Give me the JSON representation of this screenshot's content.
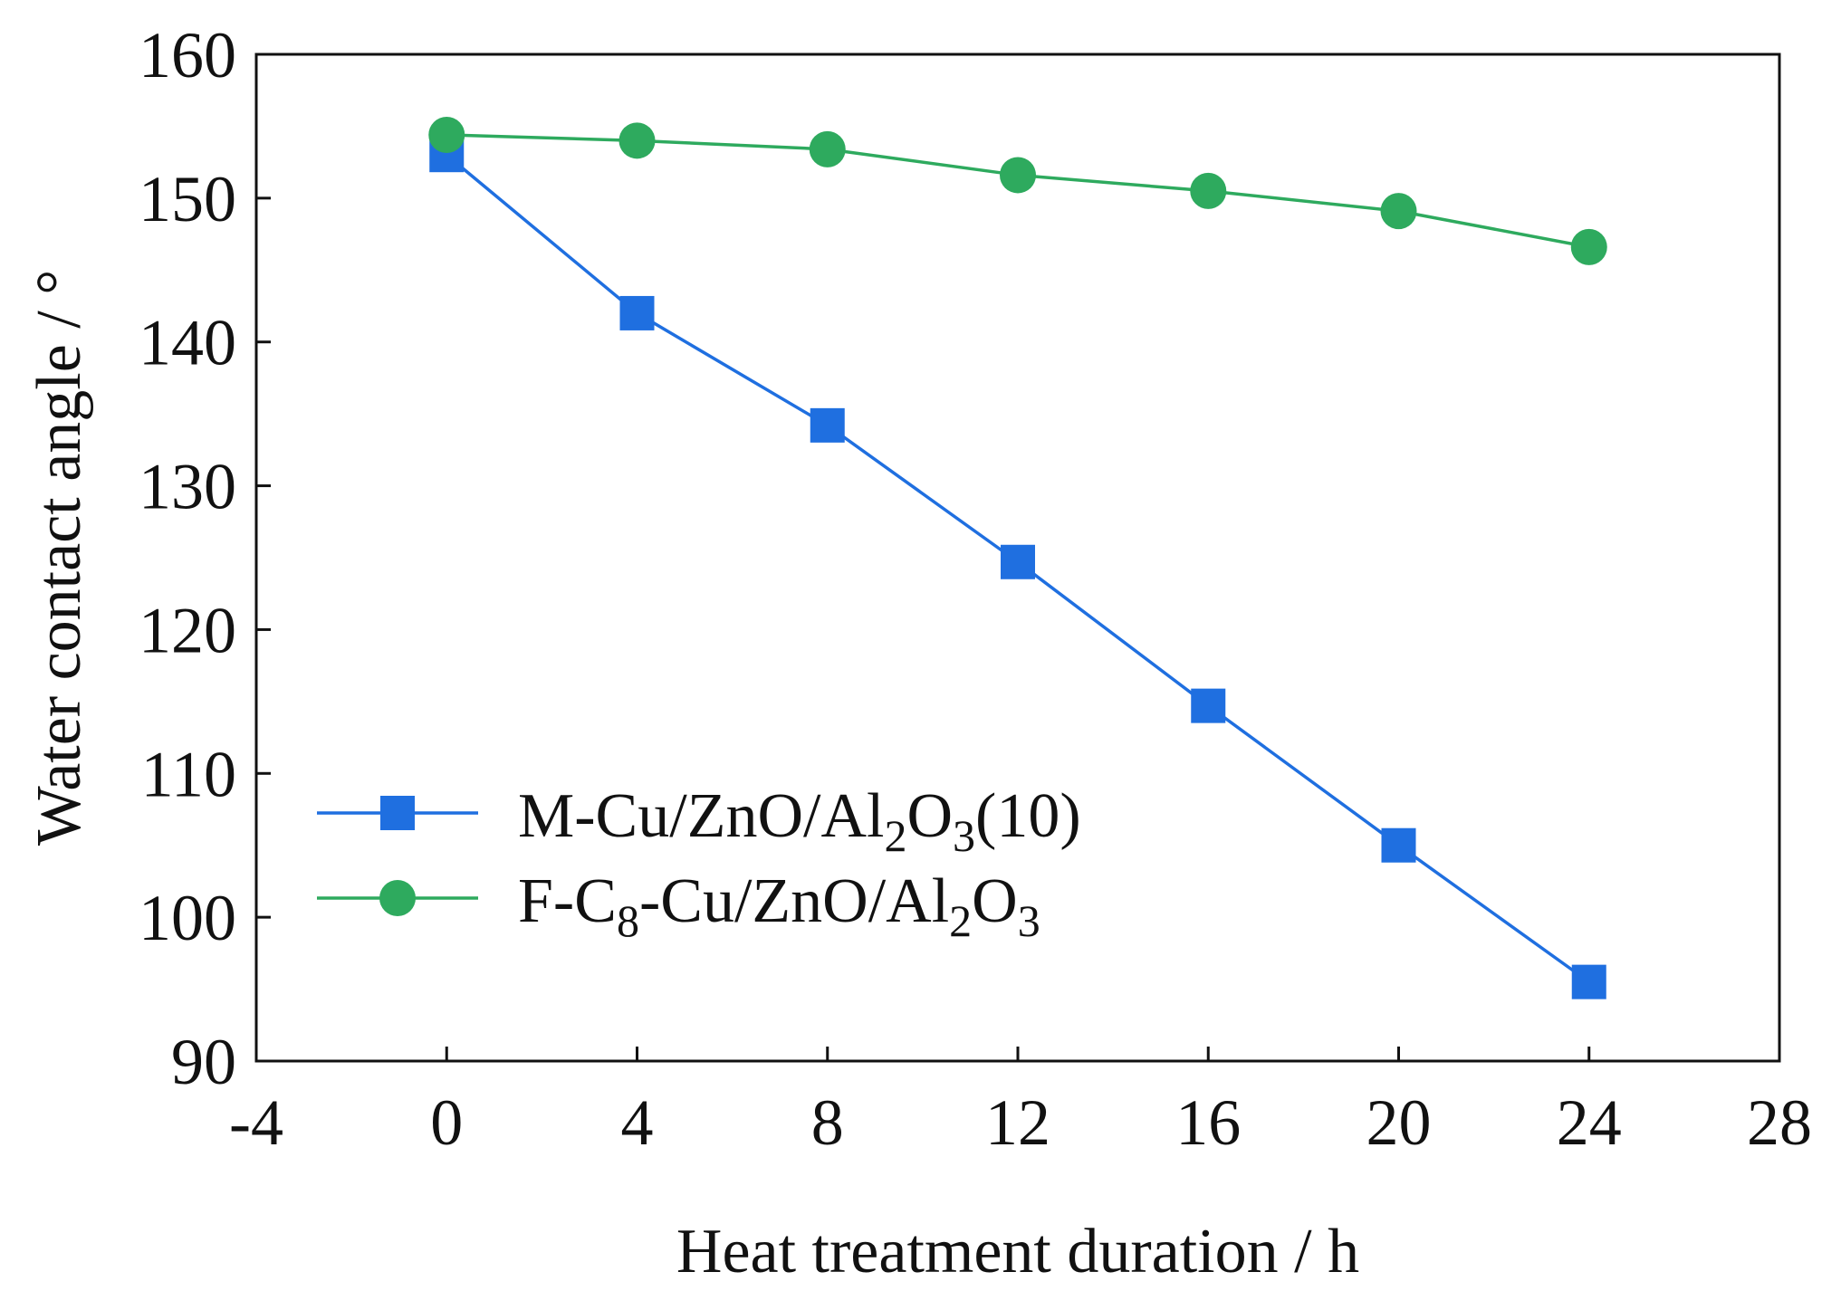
{
  "chart_data": {
    "type": "line",
    "title": "",
    "xlabel": "Heat treatment duration / h",
    "ylabel": "Water contact angle / °",
    "xlim": [
      -4,
      28
    ],
    "ylim": [
      90,
      160
    ],
    "xticks": [
      -4,
      0,
      4,
      8,
      12,
      16,
      20,
      24,
      28
    ],
    "yticks": [
      90,
      100,
      110,
      120,
      130,
      140,
      150,
      160
    ],
    "x": [
      0,
      4,
      8,
      12,
      16,
      20,
      24
    ],
    "grid": false,
    "legend_position": "bottom-left",
    "series": [
      {
        "name": "M-Cu/ZnO/Al2O3(10)",
        "legend_parts": [
          {
            "text": "M-Cu/ZnO/Al",
            "sub": false
          },
          {
            "text": "2",
            "sub": true
          },
          {
            "text": "O",
            "sub": false
          },
          {
            "text": "3",
            "sub": true
          },
          {
            "text": "(10)",
            "sub": false
          }
        ],
        "values": [
          153.0,
          142.0,
          134.2,
          124.7,
          114.7,
          105.0,
          95.5
        ],
        "marker": "square",
        "color": "#1f6fe0"
      },
      {
        "name": "F-C8-Cu/ZnO/Al2O3",
        "legend_parts": [
          {
            "text": "F-C",
            "sub": false
          },
          {
            "text": "8",
            "sub": true
          },
          {
            "text": "-Cu/ZnO/Al",
            "sub": false
          },
          {
            "text": "2",
            "sub": true
          },
          {
            "text": "O",
            "sub": false
          },
          {
            "text": "3",
            "sub": true
          }
        ],
        "values": [
          154.4,
          154.0,
          153.4,
          151.6,
          150.5,
          149.1,
          146.6
        ],
        "marker": "circle",
        "color": "#2eaa5e"
      }
    ]
  }
}
